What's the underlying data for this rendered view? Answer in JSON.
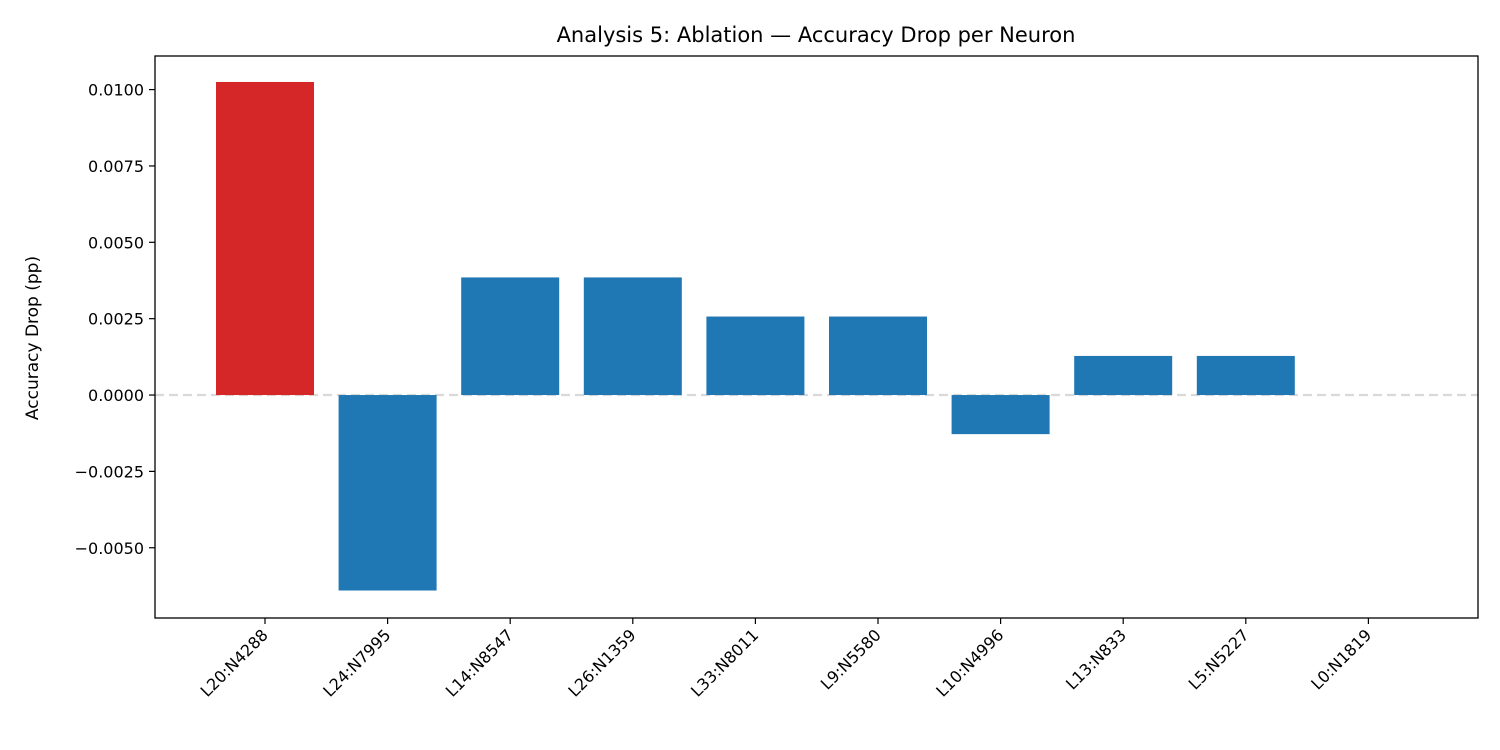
{
  "chart_data": {
    "type": "bar",
    "title": "Analysis 5: Ablation — Accuracy Drop per Neuron",
    "xlabel": "",
    "ylabel": "Accuracy Drop (pp)",
    "categories": [
      "L20:N4288",
      "L24:N7995",
      "L14:N8547",
      "L26:N1359",
      "L33:N8011",
      "L9:N5580",
      "L10:N4996",
      "L13:N833",
      "L5:N5227",
      "L0:N1819"
    ],
    "values": [
      0.01025,
      -0.0064,
      0.00385,
      0.00385,
      0.00257,
      0.00257,
      -0.00128,
      0.00128,
      0.00128,
      0.0
    ],
    "highlight_index": 0,
    "colors": {
      "default": "#1f77b4",
      "highlight": "#d62728",
      "zero_line": "#d9d9d9"
    },
    "ylim": [
      -0.0073,
      0.0111
    ],
    "yticks": [
      -0.005,
      -0.0025,
      0.0,
      0.0025,
      0.005,
      0.0075,
      0.01
    ],
    "ytick_labels": [
      "−0.0050",
      "−0.0025",
      "0.0000",
      "0.0025",
      "0.0050",
      "0.0075",
      "0.0100"
    ],
    "zero_line": "dashed",
    "grid": false
  }
}
